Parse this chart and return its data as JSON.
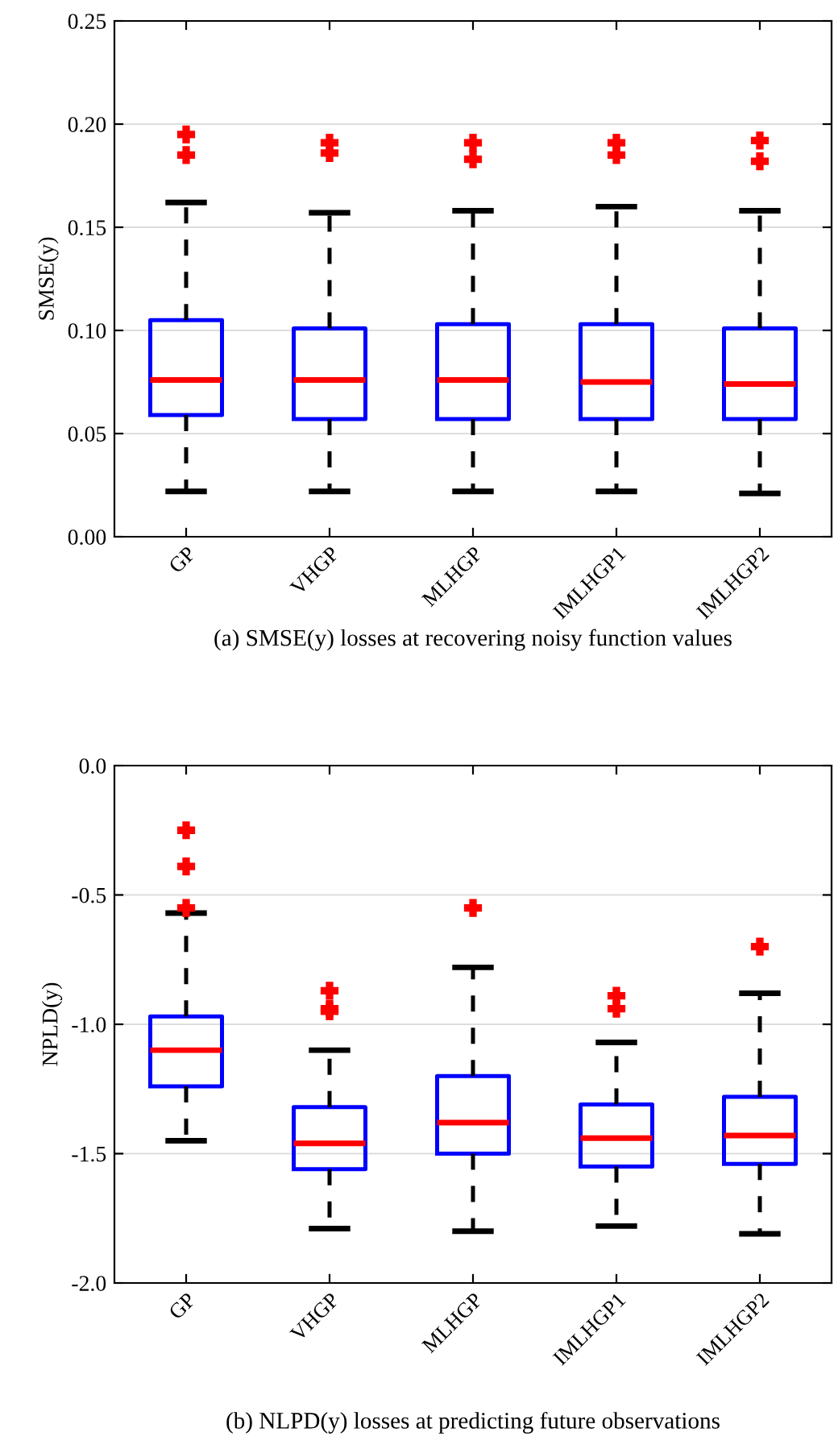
{
  "chart_data": [
    {
      "type": "box",
      "title": "(a) SMSE(y) losses at recovering noisy function values",
      "ylabel": "SMSE(y)",
      "categories": [
        "GP",
        "VHGP",
        "MLHGP",
        "IMLHGP1",
        "IMLHGP2"
      ],
      "color": "#0000ff",
      "grid": "y",
      "ylim": [
        0,
        0.25
      ],
      "yticks": [
        {
          "value": 0,
          "label": "0.00"
        },
        {
          "value": 0.05,
          "label": "0.05"
        },
        {
          "value": 0.1,
          "label": "0.10"
        },
        {
          "value": 0.15,
          "label": "0.15"
        },
        {
          "value": 0.2,
          "label": "0.20"
        },
        {
          "value": 0.25,
          "label": "0.25"
        }
      ],
      "boxes": [
        {
          "low": 0.022,
          "q1": 0.059,
          "median": 0.076,
          "q3": 0.105,
          "high": 0.162,
          "outliers": [
            0.195,
            0.185
          ]
        },
        {
          "low": 0.022,
          "q1": 0.057,
          "median": 0.076,
          "q3": 0.101,
          "high": 0.157,
          "outliers": [
            0.191,
            0.186
          ]
        },
        {
          "low": 0.022,
          "q1": 0.057,
          "median": 0.076,
          "q3": 0.103,
          "high": 0.158,
          "outliers": [
            0.191,
            0.183
          ]
        },
        {
          "low": 0.022,
          "q1": 0.057,
          "median": 0.075,
          "q3": 0.103,
          "high": 0.16,
          "outliers": [
            0.191,
            0.185
          ]
        },
        {
          "low": 0.021,
          "q1": 0.057,
          "median": 0.074,
          "q3": 0.101,
          "high": 0.158,
          "outliers": [
            0.192,
            0.182
          ]
        }
      ]
    },
    {
      "type": "box",
      "title": "(b) NLPD(y) losses at predicting future observations",
      "ylabel": "NPLD(y)",
      "categories": [
        "GP",
        "VHGP",
        "MLHGP",
        "IMLHGP1",
        "IMLHGP2"
      ],
      "color": "#0000ff",
      "grid": "y",
      "ylim": [
        -2,
        0
      ],
      "yticks": [
        {
          "value": -2,
          "label": "-2.0"
        },
        {
          "value": -1.5,
          "label": "-1.5"
        },
        {
          "value": -1,
          "label": "-1.0"
        },
        {
          "value": -0.5,
          "label": "-0.5"
        },
        {
          "value": 0,
          "label": "0.0"
        }
      ],
      "boxes": [
        {
          "low": -1.45,
          "q1": -1.24,
          "median": -1.1,
          "q3": -0.97,
          "high": -0.57,
          "outliers": [
            -0.25,
            -0.39,
            -0.55
          ]
        },
        {
          "low": -1.79,
          "q1": -1.56,
          "median": -1.46,
          "q3": -1.32,
          "high": -1.1,
          "outliers": [
            -0.87,
            -0.94,
            -0.95
          ]
        },
        {
          "low": -1.8,
          "q1": -1.5,
          "median": -1.38,
          "q3": -1.2,
          "high": -0.78,
          "outliers": [
            -0.55
          ]
        },
        {
          "low": -1.78,
          "q1": -1.55,
          "median": -1.44,
          "q3": -1.31,
          "high": -1.07,
          "outliers": [
            -0.89,
            -0.94
          ]
        },
        {
          "low": -1.81,
          "q1": -1.54,
          "median": -1.43,
          "q3": -1.28,
          "high": -0.88,
          "outliers": [
            -0.7
          ]
        }
      ]
    }
  ]
}
